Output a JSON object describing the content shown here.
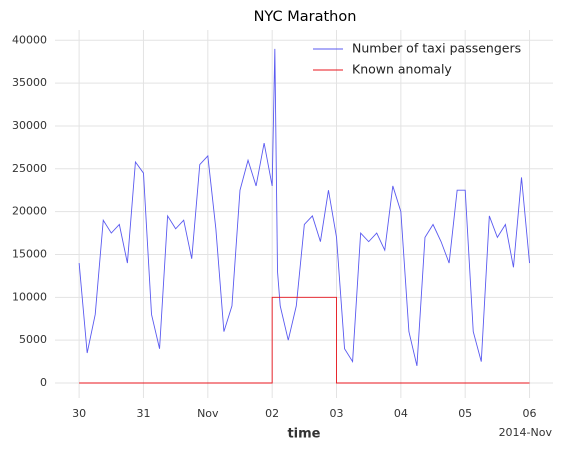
{
  "chart_data": {
    "type": "line",
    "title": "NYC Marathon",
    "xlabel": "time",
    "x_offset_label": "2014-Nov",
    "series": [
      {
        "name": "Number of taxi passengers",
        "color": "#5a5af0",
        "x": [
          "2014-10-30T00:00",
          "2014-10-30T03:00",
          "2014-10-30T06:00",
          "2014-10-30T09:00",
          "2014-10-30T12:00",
          "2014-10-30T15:00",
          "2014-10-30T18:00",
          "2014-10-30T21:00",
          "2014-10-31T00:00",
          "2014-10-31T03:00",
          "2014-10-31T06:00",
          "2014-10-31T09:00",
          "2014-10-31T12:00",
          "2014-10-31T15:00",
          "2014-10-31T18:00",
          "2014-10-31T21:00",
          "2014-11-01T00:00",
          "2014-11-01T03:00",
          "2014-11-01T06:00",
          "2014-11-01T09:00",
          "2014-11-01T12:00",
          "2014-11-01T15:00",
          "2014-11-01T18:00",
          "2014-11-01T21:00",
          "2014-11-02T00:00",
          "2014-11-02T01:00",
          "2014-11-02T02:00",
          "2014-11-02T03:00",
          "2014-11-02T06:00",
          "2014-11-02T09:00",
          "2014-11-02T12:00",
          "2014-11-02T15:00",
          "2014-11-02T18:00",
          "2014-11-02T21:00",
          "2014-11-03T00:00",
          "2014-11-03T03:00",
          "2014-11-03T06:00",
          "2014-11-03T09:00",
          "2014-11-03T12:00",
          "2014-11-03T15:00",
          "2014-11-03T18:00",
          "2014-11-03T21:00",
          "2014-11-04T00:00",
          "2014-11-04T03:00",
          "2014-11-04T06:00",
          "2014-11-04T09:00",
          "2014-11-04T12:00",
          "2014-11-04T15:00",
          "2014-11-04T18:00",
          "2014-11-04T21:00",
          "2014-11-05T00:00",
          "2014-11-05T03:00",
          "2014-11-05T06:00",
          "2014-11-05T09:00",
          "2014-11-05T12:00",
          "2014-11-05T15:00",
          "2014-11-05T18:00",
          "2014-11-05T21:00",
          "2014-11-06T00:00"
        ],
        "values": [
          14000,
          3500,
          8000,
          19000,
          17500,
          18500,
          14000,
          25800,
          24500,
          8000,
          4000,
          19500,
          18000,
          19000,
          14500,
          25500,
          26500,
          18000,
          6000,
          9000,
          22500,
          26000,
          23000,
          28000,
          23000,
          39000,
          13000,
          9000,
          5000,
          9000,
          18500,
          19500,
          16500,
          22500,
          17000,
          4000,
          2500,
          17500,
          16500,
          17500,
          15500,
          23000,
          20000,
          6000,
          2000,
          17000,
          18500,
          16500,
          14000,
          22500,
          22500,
          6000,
          2500,
          19500,
          17000,
          18500,
          13500,
          24000,
          14000
        ]
      },
      {
        "name": "Known anomaly",
        "color": "#e8141c",
        "x": [
          "2014-10-30T00:00",
          "2014-11-02T00:00",
          "2014-11-02T00:00",
          "2014-11-03T00:00",
          "2014-11-03T00:00",
          "2014-11-06T00:00"
        ],
        "values": [
          0,
          0,
          10000,
          10000,
          0,
          0
        ]
      }
    ],
    "xlim": [
      "2014-10-29T15:00",
      "2014-11-06T08:45"
    ],
    "xticks": [
      {
        "value": "2014-10-30T00:00",
        "label": "30"
      },
      {
        "value": "2014-10-31T00:00",
        "label": "31"
      },
      {
        "value": "2014-11-01T00:00",
        "label": "Nov"
      },
      {
        "value": "2014-11-02T00:00",
        "label": "02"
      },
      {
        "value": "2014-11-03T00:00",
        "label": "03"
      },
      {
        "value": "2014-11-04T00:00",
        "label": "04"
      },
      {
        "value": "2014-11-05T00:00",
        "label": "05"
      },
      {
        "value": "2014-11-06T00:00",
        "label": "06"
      }
    ],
    "ylim": [
      -1750,
      41200
    ],
    "yticks": [
      0,
      5000,
      10000,
      15000,
      20000,
      25000,
      30000,
      35000,
      40000
    ],
    "grid": true,
    "legend": "upper right"
  }
}
